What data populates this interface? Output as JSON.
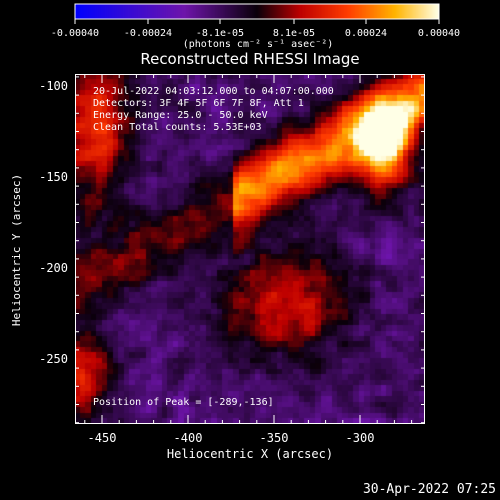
{
  "colorbar": {
    "tick_labels": [
      "-0.00040",
      "-0.00024",
      "-8.1e-05",
      "8.1e-05",
      "0.00024",
      "0.00040"
    ],
    "unit": "(photons cm⁻² s⁻¹ asec⁻²)"
  },
  "title": "Reconstructed RHESSI Image",
  "annotations": {
    "time_range": "20-Jul-2022 04:03:12.000 to 04:07:00.000",
    "detectors": "Detectors: 3F 4F 5F 6F 7F 8F, Att 1",
    "energy": "Energy Range: 25.0 - 50.0 keV",
    "clean": "Clean   Total counts: 5.53E+03",
    "peak": "Position of Peak = [-289,-136]"
  },
  "axes": {
    "x_label": "Heliocentric X (arcsec)",
    "y_label": "Heliocentric Y (arcsec)",
    "x_ticks": [
      "-450",
      "-400",
      "-350",
      "-300"
    ],
    "y_ticks": [
      "-100",
      "-150",
      "-200",
      "-250"
    ]
  },
  "footer": {
    "timestamp": "30-Apr-2022 07:25"
  },
  "colors": {
    "background": "#000000",
    "axis": "#ffffff"
  }
}
